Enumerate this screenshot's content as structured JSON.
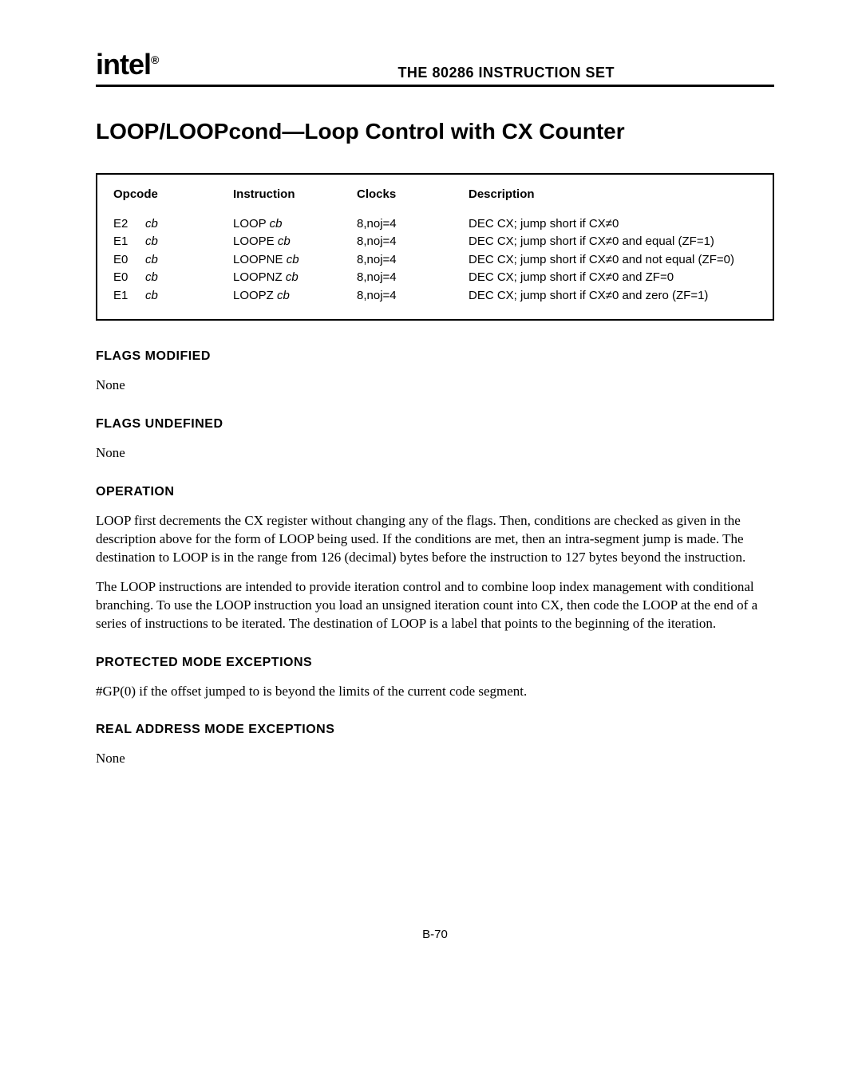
{
  "header": {
    "logo": "intel",
    "logo_reg": "®",
    "title": "THE 80286 INSTRUCTION SET"
  },
  "page_title": {
    "bold": "LOOP/LOOPcond—",
    "rest": "Loop Control with CX Counter"
  },
  "table": {
    "headers": {
      "opcode": "Opcode",
      "instruction": "Instruction",
      "clocks": "Clocks",
      "description": "Description"
    },
    "rows": [
      {
        "opcode_byte": "E2",
        "opcode_operand": "cb",
        "instruction_mnemonic": "LOOP ",
        "instruction_operand": "cb",
        "clocks": "8,noj=4",
        "description": "DEC CX; jump short if CX≠0"
      },
      {
        "opcode_byte": "E1",
        "opcode_operand": "cb",
        "instruction_mnemonic": "LOOPE ",
        "instruction_operand": "cb",
        "clocks": "8,noj=4",
        "description": "DEC CX; jump short if CX≠0 and equal (ZF=1)"
      },
      {
        "opcode_byte": "E0",
        "opcode_operand": "cb",
        "instruction_mnemonic": "LOOPNE ",
        "instruction_operand": "cb",
        "clocks": "8,noj=4",
        "description": "DEC CX; jump short if CX≠0 and not equal (ZF=0)"
      },
      {
        "opcode_byte": "E0",
        "opcode_operand": "cb",
        "instruction_mnemonic": "LOOPNZ ",
        "instruction_operand": "cb",
        "clocks": "8,noj=4",
        "description": "DEC CX; jump short if CX≠0 and ZF=0"
      },
      {
        "opcode_byte": "E1",
        "opcode_operand": "cb",
        "instruction_mnemonic": "LOOPZ ",
        "instruction_operand": "cb",
        "clocks": "8,noj=4",
        "description": "DEC CX; jump short if CX≠0 and zero (ZF=1)"
      }
    ]
  },
  "sections": {
    "flags_modified": {
      "heading": "FLAGS MODIFIED",
      "body": "None"
    },
    "flags_undefined": {
      "heading": "FLAGS UNDEFINED",
      "body": "None"
    },
    "operation": {
      "heading": "OPERATION",
      "p1": "LOOP first decrements the CX register without changing any of the flags. Then, conditions are checked as given in the description above for the form of LOOP being used. If the conditions are met, then an intra-segment jump is made. The destination to LOOP is in the range from 126 (decimal) bytes before the instruction to 127 bytes beyond the instruction.",
      "p2": "The LOOP instructions are intended to provide iteration control and to combine loop index management with conditional branching. To use the LOOP instruction you load an unsigned iteration count into CX, then code the LOOP at the end of a series of instructions to be iterated. The destination of LOOP is a label that points to the beginning of the iteration."
    },
    "protected_mode": {
      "heading": "PROTECTED MODE EXCEPTIONS",
      "body": "#GP(0) if the offset jumped to is beyond the limits of the current code segment."
    },
    "real_mode": {
      "heading": "REAL ADDRESS MODE EXCEPTIONS",
      "body": "None"
    }
  },
  "page_number": "B-70"
}
